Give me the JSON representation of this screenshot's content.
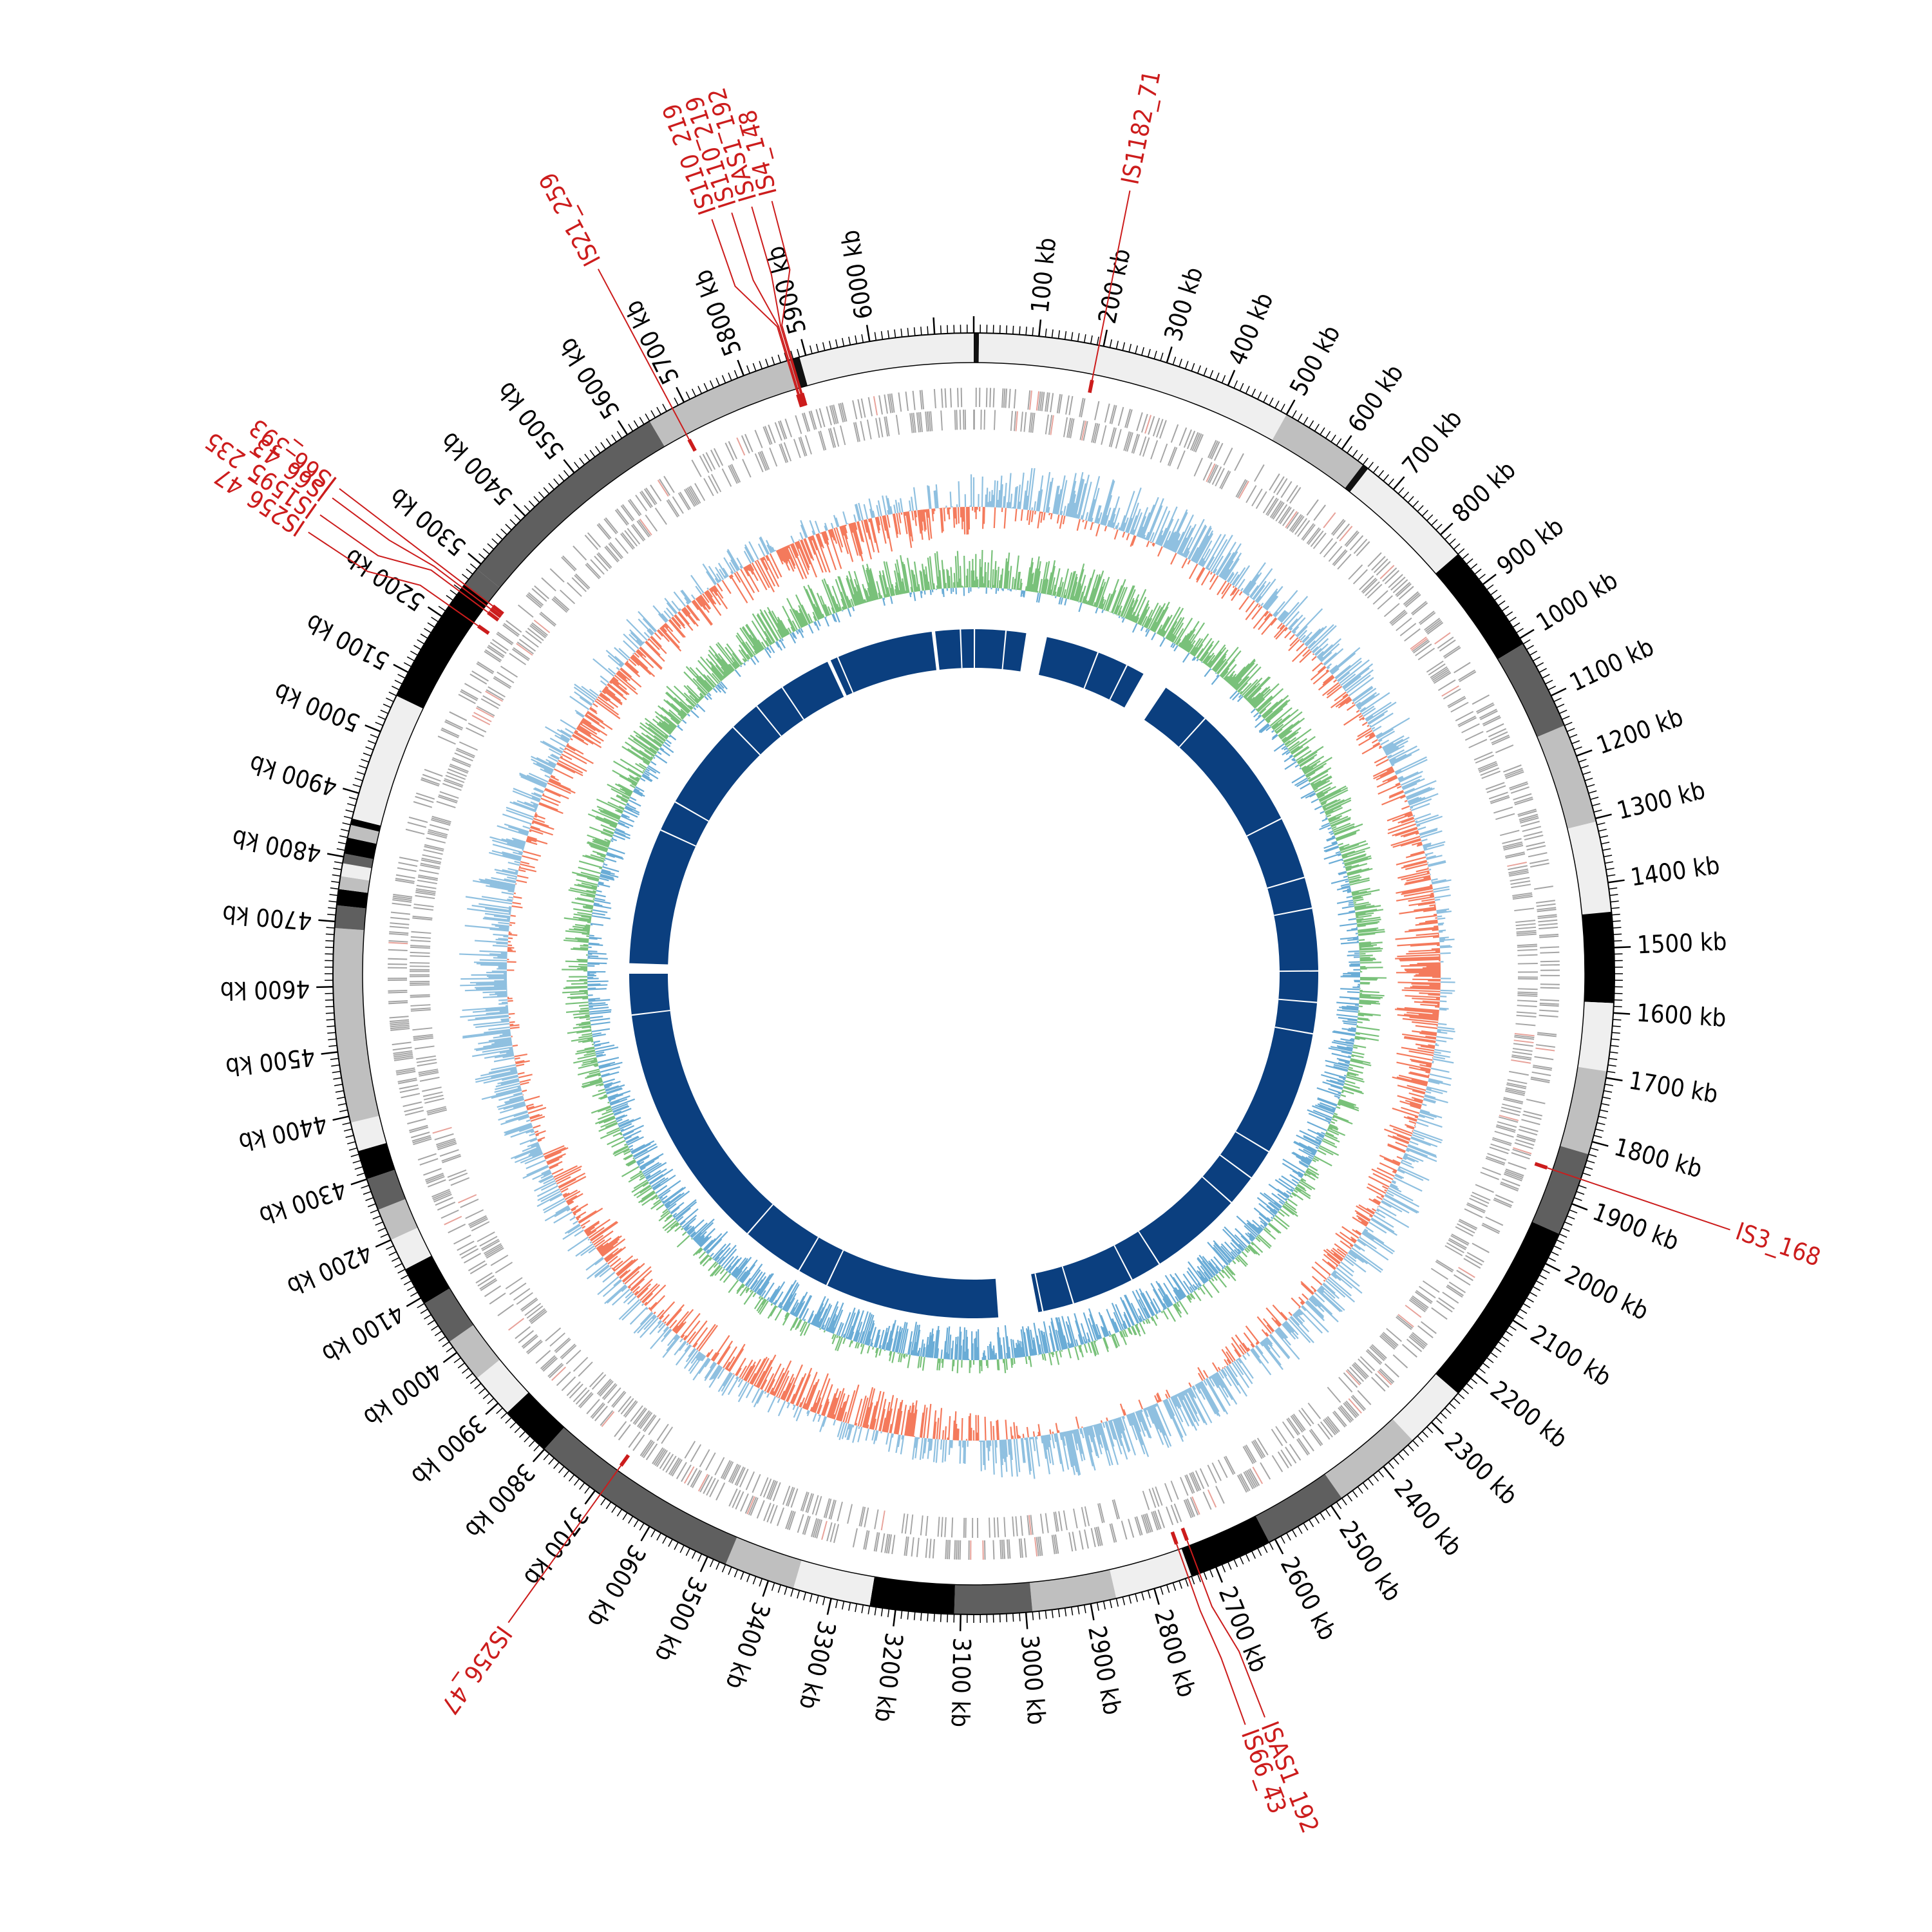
{
  "genome": {
    "total_kb": 6160,
    "tick_labels": [
      "100 kb",
      "200 kb",
      "300 kb",
      "400 kb",
      "500 kb",
      "600 kb",
      "700 kb",
      "800 kb",
      "900 kb",
      "1000 kb",
      "1100 kb",
      "1200 kb",
      "1300 kb",
      "1400 kb",
      "1500 kb",
      "1600 kb",
      "1700 kb",
      "1800 kb",
      "1900 kb",
      "2000 kb",
      "2100 kb",
      "2200 kb",
      "2300 kb",
      "2400 kb",
      "2500 kb",
      "2600 kb",
      "2700 kb",
      "2800 kb",
      "2900 kb",
      "3000 kb",
      "3100 kb",
      "3200 kb",
      "3300 kb",
      "3400 kb",
      "3500 kb",
      "3600 kb",
      "3700 kb",
      "3800 kb",
      "3900 kb",
      "4000 kb",
      "4100 kb",
      "4200 kb",
      "4300 kb",
      "4400 kb",
      "4500 kb",
      "4600 kb",
      "4700 kb",
      "4800 kb",
      "4900 kb",
      "5000 kb",
      "5100 kb",
      "5200 kb",
      "5300 kb",
      "5400 kb",
      "5500 kb",
      "5600 kb",
      "5700 kb",
      "5800 kb",
      "5900 kb",
      "6000 kb"
    ]
  },
  "insertion_sequences": [
    {
      "label": "IS1182_71",
      "kb": 193
    },
    {
      "label": "IS3_168",
      "kb": 1860
    },
    {
      "label": "ISAS1_192",
      "kb": 2727
    },
    {
      "label": "IS66_43",
      "kb": 2745
    },
    {
      "label": "IS256_47",
      "kb": 3690
    },
    {
      "label": "IS256_47",
      "kb": 5220
    },
    {
      "label": "IS1595_235",
      "kb": 5247
    },
    {
      "label": "IS66_43",
      "kb": 5254
    },
    {
      "label": "IS66_393",
      "kb": 5260
    },
    {
      "label": "IS21_259",
      "kb": 5680
    },
    {
      "label": "IS110_219",
      "kb": 5871
    },
    {
      "label": "IS110_219",
      "kb": 5873
    },
    {
      "label": "ISAS1_192",
      "kb": 5876
    },
    {
      "label": "IS4_148",
      "kb": 5878
    }
  ],
  "karyotype_bands": [
    {
      "start": 0,
      "end": 8,
      "shade": "#111111"
    },
    {
      "start": 8,
      "end": 500,
      "shade": "#efefef"
    },
    {
      "start": 500,
      "end": 640,
      "shade": "#bfbfbf"
    },
    {
      "start": 640,
      "end": 650,
      "shade": "#111111"
    },
    {
      "start": 650,
      "end": 840,
      "shade": "#efefef"
    },
    {
      "start": 840,
      "end": 1010,
      "shade": "#000000"
    },
    {
      "start": 1010,
      "end": 1150,
      "shade": "#5f5f5f"
    },
    {
      "start": 1150,
      "end": 1305,
      "shade": "#bfbfbf"
    },
    {
      "start": 1305,
      "end": 1445,
      "shade": "#efefef"
    },
    {
      "start": 1445,
      "end": 1585,
      "shade": "#000000"
    },
    {
      "start": 1585,
      "end": 1690,
      "shade": "#efefef"
    },
    {
      "start": 1690,
      "end": 1820,
      "shade": "#bfbfbf"
    },
    {
      "start": 1820,
      "end": 1950,
      "shade": "#5f5f5f"
    },
    {
      "start": 1950,
      "end": 2240,
      "shade": "#000000"
    },
    {
      "start": 2240,
      "end": 2340,
      "shade": "#efefef"
    },
    {
      "start": 2340,
      "end": 2480,
      "shade": "#bfbfbf"
    },
    {
      "start": 2480,
      "end": 2610,
      "shade": "#5f5f5f"
    },
    {
      "start": 2610,
      "end": 2740,
      "shade": "#000000"
    },
    {
      "start": 2740,
      "end": 2860,
      "shade": "#efefef"
    },
    {
      "start": 2860,
      "end": 2990,
      "shade": "#bfbfbf"
    },
    {
      "start": 2990,
      "end": 3110,
      "shade": "#5f5f5f"
    },
    {
      "start": 3110,
      "end": 3240,
      "shade": "#000000"
    },
    {
      "start": 3240,
      "end": 3360,
      "shade": "#efefef"
    },
    {
      "start": 3360,
      "end": 3470,
      "shade": "#bfbfbf"
    },
    {
      "start": 3470,
      "end": 3800,
      "shade": "#5f5f5f"
    },
    {
      "start": 3800,
      "end": 3880,
      "shade": "#000000"
    },
    {
      "start": 3880,
      "end": 3950,
      "shade": "#efefef"
    },
    {
      "start": 3950,
      "end": 4020,
      "shade": "#bfbfbf"
    },
    {
      "start": 4020,
      "end": 4090,
      "shade": "#5f5f5f"
    },
    {
      "start": 4090,
      "end": 4150,
      "shade": "#000000"
    },
    {
      "start": 4150,
      "end": 4200,
      "shade": "#efefef"
    },
    {
      "start": 4200,
      "end": 4250,
      "shade": "#bfbfbf"
    },
    {
      "start": 4250,
      "end": 4300,
      "shade": "#5f5f5f"
    },
    {
      "start": 4300,
      "end": 4345,
      "shade": "#000000"
    },
    {
      "start": 4345,
      "end": 4390,
      "shade": "#efefef"
    },
    {
      "start": 4390,
      "end": 4690,
      "shade": "#bfbfbf"
    },
    {
      "start": 4690,
      "end": 4725,
      "shade": "#5f5f5f"
    },
    {
      "start": 4725,
      "end": 4750,
      "shade": "#000000"
    },
    {
      "start": 4750,
      "end": 4770,
      "shade": "#bfbfbf"
    },
    {
      "start": 4770,
      "end": 4790,
      "shade": "#efefef"
    },
    {
      "start": 4790,
      "end": 4805,
      "shade": "#5f5f5f"
    },
    {
      "start": 4805,
      "end": 4830,
      "shade": "#000000"
    },
    {
      "start": 4830,
      "end": 4850,
      "shade": "#bfbfbf"
    },
    {
      "start": 4850,
      "end": 4860,
      "shade": "#000000"
    },
    {
      "start": 4860,
      "end": 5060,
      "shade": "#efefef"
    },
    {
      "start": 5060,
      "end": 5260,
      "shade": "#000000"
    },
    {
      "start": 5260,
      "end": 5290,
      "shade": "#5f5f5f"
    },
    {
      "start": 5290,
      "end": 5640,
      "shade": "#5f5f5f"
    },
    {
      "start": 5640,
      "end": 5875,
      "shade": "#bfbfbf"
    },
    {
      "start": 5875,
      "end": 5890,
      "shade": "#111111"
    },
    {
      "start": 5890,
      "end": 6160,
      "shade": "#efefef"
    }
  ],
  "core_gaps": [
    {
      "start": 150,
      "end": 210
    },
    {
      "start": 505,
      "end": 580
    },
    {
      "start": 2895,
      "end": 3010
    },
    {
      "start": 4620,
      "end": 4650
    },
    {
      "start": 5730,
      "end": 5740
    },
    {
      "start": 6040,
      "end": 6050
    }
  ],
  "colors": {
    "background": "#ffffff",
    "tick": "#000000",
    "is_marker": "#cc1c1c",
    "gene_track": "#a5a5a5",
    "gc_positive": "#8fc0e0",
    "gc_negative": "#f47a5c",
    "skew_positive": "#79c17a",
    "skew_negative": "#6aacd6",
    "core_genome": "#0b3f7f"
  }
}
